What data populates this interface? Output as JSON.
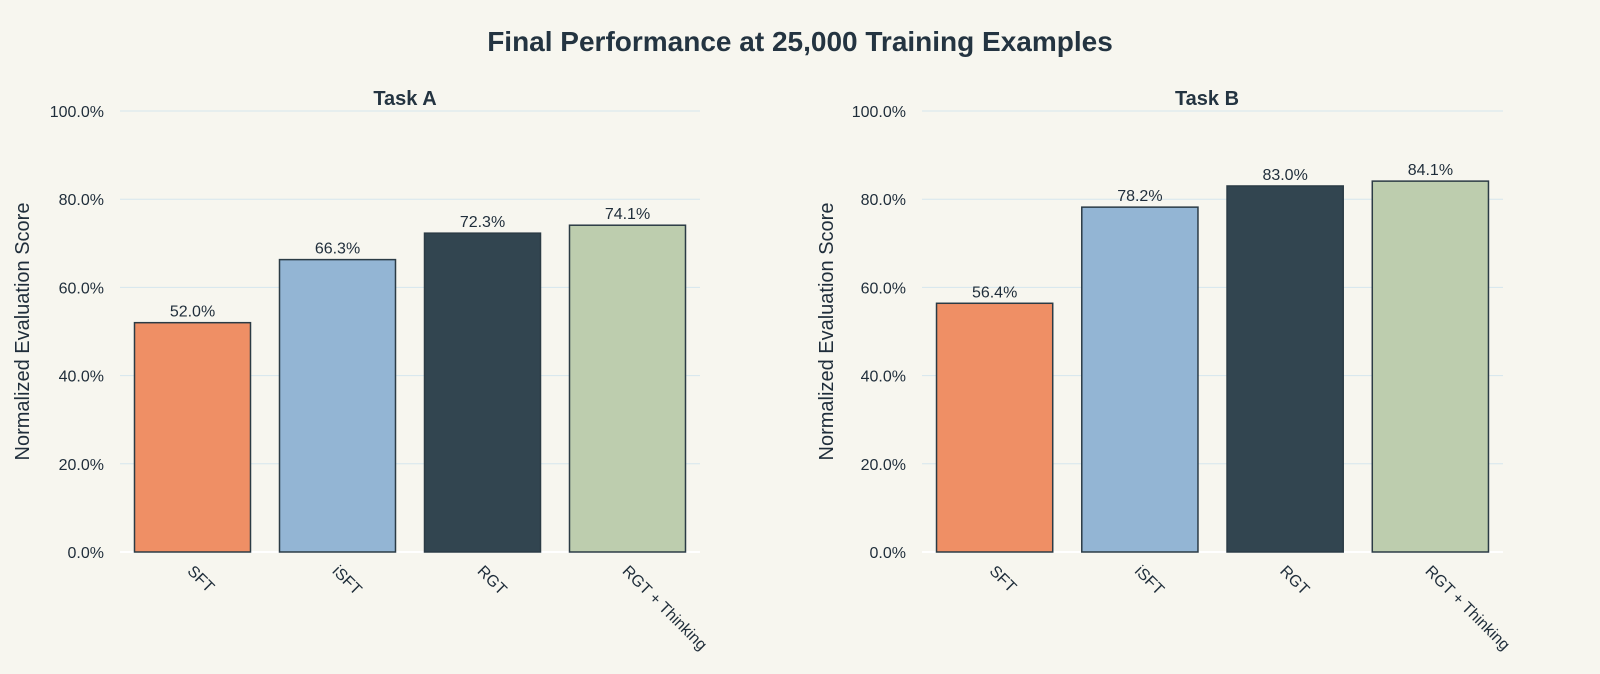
{
  "title": "Final Performance at 25,000 Training Examples",
  "colors": {
    "background": "#f7f6ef",
    "gridline": "#d5e6ee",
    "bar_outline": "#2b3b45",
    "text": "#1f2d3a",
    "bars": [
      "#ef8f65",
      "#93b5d4",
      "#324550",
      "#bdcdae"
    ]
  },
  "chart_data": [
    {
      "type": "bar",
      "title": "Task A",
      "xlabel": "",
      "ylabel": "Normalized Evaluation Score",
      "categories": [
        "SFT",
        "iSFT",
        "RGT",
        "RGT + Thinking"
      ],
      "values": [
        52.0,
        66.3,
        72.3,
        74.1
      ],
      "data_labels": [
        "52.0%",
        "66.3%",
        "72.3%",
        "74.1%"
      ],
      "ylim": [
        0,
        100
      ],
      "y_ticks": [
        0,
        20,
        40,
        60,
        80,
        100
      ],
      "y_tick_labels": [
        "0.0%",
        "20.0%",
        "40.0%",
        "60.0%",
        "80.0%",
        "100.0%"
      ],
      "grid": true,
      "legend": "none"
    },
    {
      "type": "bar",
      "title": "Task B",
      "xlabel": "",
      "ylabel": "Normalized Evaluation Score",
      "categories": [
        "SFT",
        "iSFT",
        "RGT",
        "RGT + Thinking"
      ],
      "values": [
        56.4,
        78.2,
        83.0,
        84.1
      ],
      "data_labels": [
        "56.4%",
        "78.2%",
        "83.0%",
        "84.1%"
      ],
      "ylim": [
        0,
        100
      ],
      "y_ticks": [
        0,
        20,
        40,
        60,
        80,
        100
      ],
      "y_tick_labels": [
        "0.0%",
        "20.0%",
        "40.0%",
        "60.0%",
        "80.0%",
        "100.0%"
      ],
      "grid": true,
      "legend": "none"
    }
  ]
}
